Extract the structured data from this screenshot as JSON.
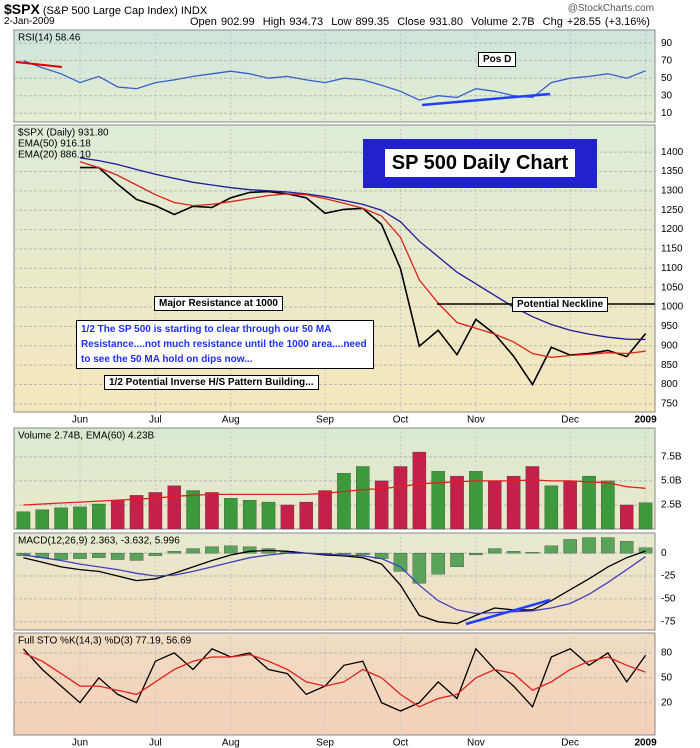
{
  "header": {
    "symbol": "$SPX",
    "description": "(S&P 500 Large Cap Index) INDX",
    "site": "@StockCharts.com",
    "date": "2-Jan-2009",
    "open": "Open 902.99",
    "high": "High 934.73",
    "low": "Low 899.35",
    "close": "Close 931.80",
    "volume": "Volume 2.7B",
    "change": "Chg +28.55 (+3.16%)"
  },
  "annotations": {
    "pos_d": "Pos D",
    "chart_title": "SP 500 Daily Chart",
    "resistance": "Major Resistance at 1000",
    "neckline": "Potential Neckline",
    "comment": "1/2  The SP 500 is starting to clear through our 50 MA Resistance....not much resistance until the 1000 area....need to see the 50 MA hold on dips now...",
    "pattern": "1/2  Potential Inverse H/S Pattern Building..."
  },
  "chart_data": [
    {
      "type": "line",
      "legend": [
        "RSI(14) 58.46"
      ],
      "ylim": [
        0,
        105
      ],
      "yticks": [
        90,
        70,
        50,
        30,
        10
      ],
      "grid": true,
      "series": [
        {
          "name": "RSI(14)",
          "color": "#3a5fcd",
          "type": "line",
          "values": [
            70,
            62,
            55,
            45,
            52,
            40,
            38,
            45,
            48,
            52,
            55,
            58,
            55,
            50,
            52,
            48,
            45,
            50,
            48,
            42,
            35,
            25,
            30,
            28,
            38,
            35,
            30,
            28,
            45,
            50,
            52,
            55,
            50,
            58.46
          ]
        }
      ]
    },
    {
      "type": "line",
      "legend": [
        "$SPX (Daily) 931.80",
        "EMA(50) 916.18",
        "EMA(20) 886.10"
      ],
      "ylim": [
        729,
        1470
      ],
      "yticks": [
        1400,
        1350,
        1300,
        1250,
        1200,
        1150,
        1100,
        1050,
        1000,
        950,
        900,
        850,
        800,
        750
      ],
      "grid": true,
      "categories": [
        null,
        null,
        null,
        "Jun",
        null,
        null,
        null,
        "Jul",
        null,
        null,
        null,
        "Aug",
        null,
        null,
        null,
        null,
        "Sep",
        null,
        null,
        null,
        "Oct",
        null,
        null,
        null,
        "Nov",
        null,
        null,
        null,
        null,
        "Dec",
        null,
        null,
        null,
        "2009"
      ],
      "series": [
        {
          "name": "$SPX (Daily)",
          "color": "#000000",
          "type": "line",
          "values": [
            null,
            null,
            null,
            1360,
            1360,
            1317,
            1278,
            1262,
            1239,
            1260,
            1257,
            1282,
            1296,
            1298,
            1292,
            1282,
            1242,
            1252,
            1255,
            1213,
            1099,
            899,
            940,
            877,
            968,
            930,
            873,
            800,
            896,
            876,
            880,
            888,
            872,
            931.8
          ]
        },
        {
          "name": "EMA(50)",
          "color": "#1c1c9c",
          "type": "line",
          "values": [
            null,
            null,
            null,
            1385,
            1378,
            1368,
            1355,
            1343,
            1332,
            1322,
            1315,
            1308,
            1303,
            1300,
            1297,
            1292,
            1285,
            1275,
            1265,
            1250,
            1220,
            1170,
            1130,
            1090,
            1060,
            1030,
            1000,
            975,
            955,
            940,
            930,
            922,
            917,
            916.18
          ]
        },
        {
          "name": "EMA(20)",
          "color": "#e0201c",
          "type": "line",
          "values": [
            null,
            null,
            null,
            1375,
            1360,
            1340,
            1315,
            1290,
            1270,
            1262,
            1265,
            1272,
            1280,
            1288,
            1292,
            1290,
            1280,
            1268,
            1255,
            1235,
            1180,
            1070,
            1010,
            960,
            945,
            930,
            910,
            880,
            870,
            875,
            878,
            882,
            880,
            886.1
          ]
        }
      ]
    },
    {
      "type": "bar",
      "legend": [
        "Volume 2.74B, EMA(60) 4.23B"
      ],
      "ylim": [
        0,
        10.5
      ],
      "yticks": [
        {
          "value": 7.5,
          "label": "7.5B"
        },
        {
          "value": 5,
          "label": "5.0B"
        },
        {
          "value": 2.5,
          "label": "2.5B"
        }
      ],
      "grid": true,
      "up_color": "#3c9a3c",
      "down_color": "#c4204c",
      "series": [
        {
          "name": "Volume",
          "color": "#3c9a3c",
          "type": "bar",
          "values": [
            1.8,
            2.0,
            2.2,
            2.3,
            2.6,
            3.0,
            3.5,
            3.8,
            4.5,
            4.0,
            3.8,
            3.2,
            3.0,
            2.8,
            2.5,
            2.8,
            4.0,
            5.8,
            6.5,
            5.0,
            6.5,
            8.0,
            6.0,
            5.5,
            6.0,
            5.0,
            5.5,
            6.5,
            4.5,
            5.0,
            5.5,
            5.0,
            2.5,
            2.74
          ]
        },
        {
          "name": "EMA(60)",
          "color": "#e0201c",
          "type": "line",
          "values": [
            2.5,
            2.6,
            2.7,
            2.8,
            2.9,
            3.0,
            3.1,
            3.2,
            3.4,
            3.5,
            3.6,
            3.6,
            3.6,
            3.6,
            3.6,
            3.6,
            3.7,
            3.9,
            4.1,
            4.2,
            4.4,
            4.7,
            4.8,
            4.9,
            5.0,
            5.0,
            5.0,
            5.1,
            5.0,
            5.0,
            4.9,
            4.8,
            4.4,
            4.23
          ]
        }
      ]
    },
    {
      "type": "line",
      "legend": [
        "MACD(12,26,9) 2.363, -3.632, 5.996"
      ],
      "ylim": [
        -84,
        22
      ],
      "yticks": [
        0,
        -25,
        -50,
        -75
      ],
      "grid": true,
      "series": [
        {
          "name": "Histogram",
          "color": "#5aa35a",
          "type": "bar",
          "values": [
            -3,
            -5,
            -7,
            -6,
            -5,
            -7,
            -8,
            -3,
            2,
            5,
            7,
            8,
            7,
            5,
            2,
            0,
            -1,
            -1,
            -2,
            -6,
            -20,
            -33,
            -23,
            -15,
            -2,
            5,
            2,
            1,
            8,
            15,
            17,
            17,
            13,
            5.996
          ]
        },
        {
          "name": "MACD",
          "color": "#000000",
          "type": "line",
          "values": [
            -5,
            -10,
            -15,
            -18,
            -20,
            -25,
            -30,
            -28,
            -22,
            -15,
            -8,
            -2,
            2,
            3,
            2,
            0,
            -2,
            -3,
            -5,
            -12,
            -35,
            -68,
            -75,
            -77,
            -68,
            -60,
            -62,
            -62,
            -52,
            -40,
            -28,
            -15,
            -5,
            2.363
          ]
        },
        {
          "name": "Signal",
          "color": "#4040c0",
          "type": "line",
          "values": [
            -2,
            -5,
            -8,
            -12,
            -15,
            -18,
            -22,
            -25,
            -24,
            -20,
            -15,
            -10,
            -5,
            -2,
            0,
            0,
            -1,
            -2,
            -3,
            -6,
            -15,
            -35,
            -52,
            -62,
            -66,
            -65,
            -64,
            -63,
            -60,
            -55,
            -45,
            -32,
            -18,
            -3.632
          ]
        }
      ]
    },
    {
      "type": "line",
      "legend": [
        "Full STO %K(14,3) %D(3) 77.19, 56.69"
      ],
      "ylim": [
        -19,
        104
      ],
      "yticks": [
        80,
        50,
        20
      ],
      "grid": true,
      "categories": [
        null,
        null,
        null,
        "Jun",
        null,
        null,
        null,
        "Jul",
        null,
        null,
        null,
        "Aug",
        null,
        null,
        null,
        null,
        "Sep",
        null,
        null,
        null,
        "Oct",
        null,
        null,
        null,
        "Nov",
        null,
        null,
        null,
        null,
        "Dec",
        null,
        null,
        null,
        "2009"
      ],
      "series": [
        {
          "name": "%K",
          "color": "#000000",
          "type": "line",
          "values": [
            85,
            60,
            40,
            20,
            50,
            30,
            20,
            70,
            80,
            60,
            85,
            75,
            80,
            60,
            55,
            30,
            40,
            65,
            70,
            20,
            10,
            20,
            45,
            25,
            85,
            60,
            40,
            15,
            75,
            85,
            65,
            80,
            45,
            77.19
          ]
        },
        {
          "name": "%D",
          "color": "#e0201c",
          "type": "line",
          "values": [
            80,
            70,
            55,
            40,
            40,
            35,
            30,
            45,
            60,
            70,
            75,
            75,
            78,
            70,
            60,
            45,
            40,
            45,
            60,
            50,
            30,
            15,
            25,
            30,
            50,
            60,
            55,
            35,
            45,
            60,
            70,
            75,
            65,
            56.69
          ]
        }
      ]
    }
  ]
}
